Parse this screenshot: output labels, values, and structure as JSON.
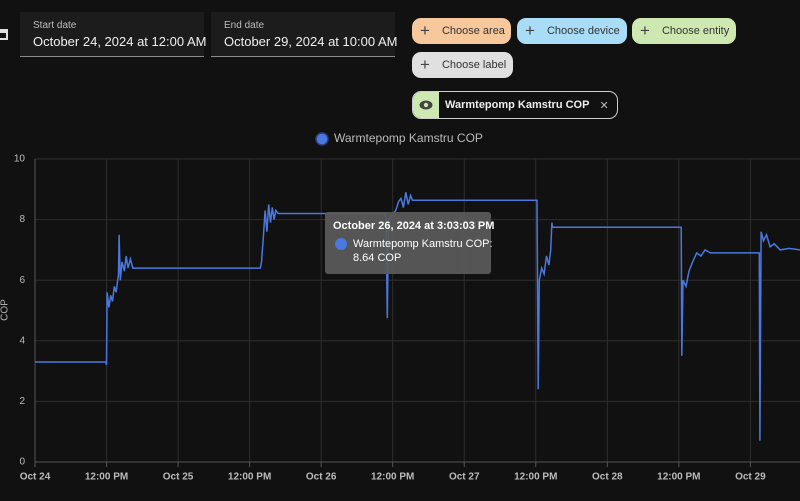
{
  "header": {
    "start_label": "Start date",
    "start_value": "October 24, 2024 at 12:00 AM",
    "end_label": "End date",
    "end_value": "October 29, 2024 at 10:00 AM"
  },
  "chips": [
    {
      "label": "Choose area",
      "color": "#f6c89c"
    },
    {
      "label": "Choose device",
      "color": "#a9dcf7"
    },
    {
      "label": "Choose entity",
      "color": "#cde8b0"
    },
    {
      "label": "Choose label",
      "color": "#e0e0e0"
    }
  ],
  "selected_entity": "Warmtepomp Kamstru COP",
  "tooltip": {
    "title": "October 26, 2024 at 3:03:03 PM",
    "series": "Warmtepomp Kamstru COP:",
    "value": "8.64 COP"
  },
  "chart_data": {
    "type": "line",
    "ylabel": "COP",
    "x": [
      0,
      11.9,
      12.0,
      12.1,
      12.4,
      12.7,
      13.0,
      13.3,
      13.6,
      14.0,
      14.1,
      14.3,
      14.6,
      15.0,
      15.3,
      15.6,
      16.0,
      16.4,
      16.8,
      37.8,
      38.0,
      38.3,
      38.6,
      38.9,
      39.2,
      39.5,
      39.8,
      40.1,
      40.4,
      40.8,
      41.0,
      58.7,
      58.9,
      59.1,
      59.3,
      60.5,
      61.0,
      61.4,
      61.8,
      62.2,
      62.6,
      63.0,
      63.3,
      84.2,
      84.4,
      84.6,
      85.0,
      85.4,
      85.8,
      86.2,
      86.5,
      86.7,
      86.8,
      108.4,
      108.5,
      108.7,
      109.2,
      109.7,
      110.3,
      111.0,
      111.7,
      112.4,
      113.3,
      121.5,
      121.6,
      121.8,
      122.2,
      122.7,
      123.3,
      124.0,
      125.0,
      126.5,
      128.4
    ],
    "series": [
      {
        "name": "Warmtepomp Kamstru COP",
        "color": "#4a78e0",
        "values": [
          3.3,
          3.3,
          3.2,
          5.6,
          5.1,
          5.5,
          5.3,
          5.8,
          5.6,
          6.2,
          7.5,
          6.0,
          6.6,
          6.3,
          6.8,
          6.4,
          6.7,
          6.4,
          6.4,
          6.4,
          6.6,
          7.4,
          8.3,
          7.6,
          8.5,
          7.9,
          8.4,
          8.0,
          8.3,
          8.2,
          8.2,
          8.2,
          8.0,
          4.75,
          8.0,
          8.3,
          8.6,
          8.7,
          8.4,
          8.9,
          8.5,
          8.8,
          8.64,
          8.64,
          2.4,
          6.0,
          6.4,
          6.2,
          6.8,
          6.5,
          7.0,
          7.9,
          7.75,
          7.75,
          3.5,
          6.0,
          5.8,
          6.3,
          6.6,
          6.9,
          6.8,
          7.0,
          6.9,
          6.9,
          0.7,
          7.6,
          7.3,
          7.5,
          7.1,
          7.2,
          7.0,
          7.05,
          7.0
        ]
      }
    ],
    "xlim": [
      0,
      130
    ],
    "xticks": [
      {
        "value": 0,
        "label": "Oct 24"
      },
      {
        "value": 12,
        "label": "12:00 PM"
      },
      {
        "value": 24,
        "label": "Oct 25"
      },
      {
        "value": 36,
        "label": "12:00 PM"
      },
      {
        "value": 48,
        "label": "Oct 26"
      },
      {
        "value": 60,
        "label": "12:00 PM"
      },
      {
        "value": 72,
        "label": "Oct 27"
      },
      {
        "value": 84,
        "label": "12:00 PM"
      },
      {
        "value": 96,
        "label": "Oct 28"
      },
      {
        "value": 108,
        "label": "12:00 PM"
      },
      {
        "value": 120,
        "label": "Oct 29"
      }
    ],
    "ylim": [
      0,
      10
    ],
    "yticks": [
      0,
      2,
      4,
      6,
      8,
      10
    ],
    "grid": true
  }
}
